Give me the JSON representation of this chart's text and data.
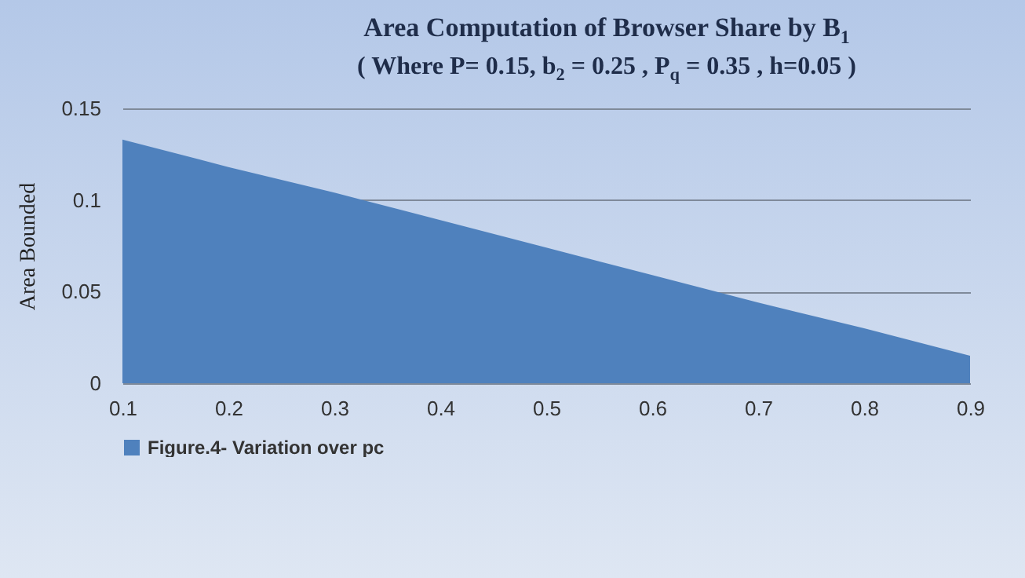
{
  "chart_data": {
    "type": "area",
    "title": "Area Computation of  Browser  Share by B$_{1}$",
    "subtitle": "( Where P= 0.15, b$_{2}$ = 0.25 , P$_{q}$ = 0.35 ,  h=0.05 )",
    "ylabel": "Area Bounded",
    "x": [
      0.1,
      0.2,
      0.3,
      0.4,
      0.5,
      0.6,
      0.7,
      0.8,
      0.9
    ],
    "series": [
      {
        "name": "Figure.4- Variation over pc",
        "color": "#4f81bd",
        "values": [
          0.133,
          0.118,
          0.104,
          0.089,
          0.074,
          0.059,
          0.044,
          0.03,
          0.015
        ]
      }
    ],
    "xlim": [
      0.1,
      0.9
    ],
    "xticks": [
      0.1,
      0.2,
      0.3,
      0.4,
      0.5,
      0.6,
      0.7,
      0.8,
      0.9
    ],
    "ylim": [
      0,
      0.15
    ],
    "yticks": [
      0,
      0.05,
      0.1,
      0.15
    ],
    "grid": "y",
    "legend": "bottom"
  }
}
